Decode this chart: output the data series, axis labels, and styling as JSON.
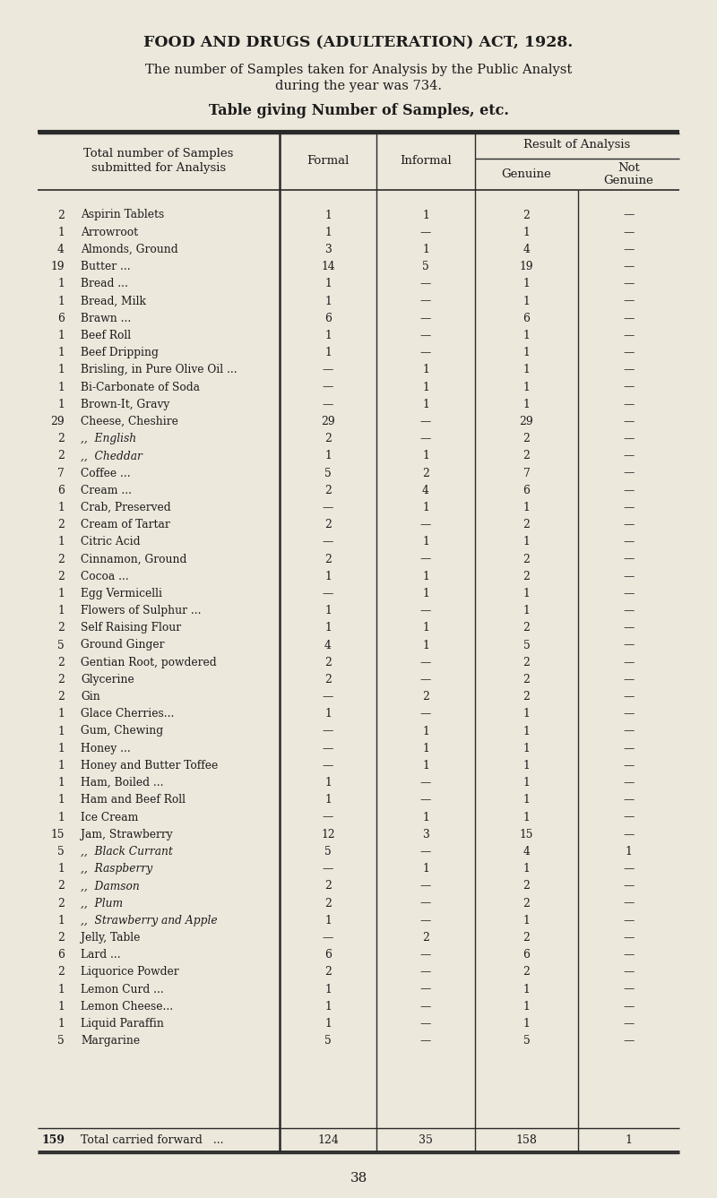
{
  "bg_color": "#ede8dc",
  "title": "FOOD AND DRUGS (ADULTERATION) ACT, 1928.",
  "subtitle": "    The number of Samples taken for Analysis by the Public Analyst\nduring the year was 734.",
  "table_title": "Table giving Number of Samples, etc.",
  "rows": [
    [
      "2",
      "Aspirin Tablets",
      "...",
      "...",
      "1",
      "1",
      "2",
      "—"
    ],
    [
      "1",
      "Arrowroot",
      "...",
      "...",
      "1",
      "—",
      "1",
      "—"
    ],
    [
      "4",
      "Almonds, Ground",
      "...",
      "...",
      "3",
      "1",
      "4",
      "—"
    ],
    [
      "19",
      "Butter ...",
      "...",
      "...",
      "14",
      "5",
      "19",
      "—"
    ],
    [
      "1",
      "Bread ...",
      "...",
      "...",
      "1",
      "—",
      "1",
      "—"
    ],
    [
      "1",
      "Bread, Milk",
      "...",
      "...",
      "1",
      "—",
      "1",
      "—"
    ],
    [
      "6",
      "Brawn ...",
      "...",
      "...",
      "6",
      "—",
      "6",
      "—"
    ],
    [
      "1",
      "Beef Roll",
      "...",
      "...",
      "1",
      "—",
      "1",
      "—"
    ],
    [
      "1",
      "Beef Dripping",
      "...",
      "...",
      "1",
      "—",
      "1",
      "—"
    ],
    [
      "1",
      "Brisling, in Pure Olive Oil ...",
      "",
      "",
      "—",
      "1",
      "1",
      "—"
    ],
    [
      "1",
      "Bi-Carbonate of Soda",
      "...",
      "",
      "—",
      "1",
      "1",
      "—"
    ],
    [
      "1",
      "Brown-It, Gravy",
      "...",
      "...",
      "—",
      "1",
      "1",
      "—"
    ],
    [
      "29",
      "Cheese, Cheshire",
      "...",
      "...",
      "29",
      "—",
      "29",
      "—"
    ],
    [
      "2",
      ",,  English",
      "...",
      "...",
      "2",
      "—",
      "2",
      "—"
    ],
    [
      "2",
      ",,  Cheddar",
      "...",
      "...",
      "1",
      "1",
      "2",
      "—"
    ],
    [
      "7",
      "Coffee ...",
      "...",
      "...",
      "5",
      "2",
      "7",
      "—"
    ],
    [
      "6",
      "Cream ...",
      "...",
      "...",
      "2",
      "4",
      "6",
      "—"
    ],
    [
      "1",
      "Crab, Preserved",
      "...",
      "...",
      "—",
      "1",
      "1",
      "—"
    ],
    [
      "2",
      "Cream of Tartar",
      "...",
      "...",
      "2",
      "—",
      "2",
      "—"
    ],
    [
      "1",
      "Citric Acid",
      "...",
      "...",
      "—",
      "1",
      "1",
      "—"
    ],
    [
      "2",
      "Cinnamon, Ground",
      "...",
      "...",
      "2",
      "—",
      "2",
      "—"
    ],
    [
      "2",
      "Cocoa ...",
      "...",
      "...",
      "1",
      "1",
      "2",
      "—"
    ],
    [
      "1",
      "Egg Vermicelli",
      "...",
      "...",
      "—",
      "1",
      "1",
      "—"
    ],
    [
      "1",
      "Flowers of Sulphur ...",
      "...",
      "...",
      "1",
      "—",
      "1",
      "—"
    ],
    [
      "2",
      "Self Raising Flour",
      "...",
      "...",
      "1",
      "1",
      "2",
      "—"
    ],
    [
      "5",
      "Ground Ginger",
      "...",
      "...",
      "4",
      "1",
      "5",
      "—"
    ],
    [
      "2",
      "Gentian Root, powdered",
      "...",
      "",
      "2",
      "—",
      "2",
      "—"
    ],
    [
      "2",
      "Glycerine",
      "...",
      "...",
      "2",
      "—",
      "2",
      "—"
    ],
    [
      "2",
      "Gin",
      "...",
      "...",
      "—",
      "2",
      "2",
      "—"
    ],
    [
      "1",
      "Glace Cherries...",
      "...",
      "...",
      "1",
      "—",
      "1",
      "—"
    ],
    [
      "1",
      "Gum, Chewing",
      "...",
      "...",
      "—",
      "1",
      "1",
      "—"
    ],
    [
      "1",
      "Honey ...",
      "...",
      "...",
      "—",
      "1",
      "1",
      "—"
    ],
    [
      "1",
      "Honey and Butter Toffee",
      "...",
      "",
      "—",
      "1",
      "1",
      "—"
    ],
    [
      "1",
      "Ham, Boiled ...",
      "...",
      "...",
      "1",
      "—",
      "1",
      "—"
    ],
    [
      "1",
      "Ham and Beef Roll",
      "...",
      "",
      "1",
      "—",
      "1",
      "—"
    ],
    [
      "1",
      "Ice Cream",
      "...",
      "...",
      "—",
      "1",
      "1",
      "—"
    ],
    [
      "15",
      "Jam, Strawberry",
      "...",
      "...",
      "12",
      "3",
      "15",
      "—"
    ],
    [
      "5",
      ",,  Black Currant",
      "...",
      "",
      "5",
      "—",
      "4",
      "1"
    ],
    [
      "1",
      ",,  Raspberry",
      "...",
      "",
      "—",
      "1",
      "1",
      "—"
    ],
    [
      "2",
      ",,  Damson",
      "...",
      "...",
      "2",
      "—",
      "2",
      "—"
    ],
    [
      "2",
      ",,  Plum",
      "...",
      "...",
      "2",
      "—",
      "2",
      "—"
    ],
    [
      "1",
      ",,  Strawberry and Apple",
      "",
      "",
      "1",
      "—",
      "1",
      "—"
    ],
    [
      "2",
      "Jelly, Table",
      "...",
      "...",
      "—",
      "2",
      "2",
      "—"
    ],
    [
      "6",
      "Lard ...",
      "...",
      "...",
      "6",
      "—",
      "6",
      "—"
    ],
    [
      "2",
      "Liquorice Powder",
      "...",
      "...",
      "2",
      "—",
      "2",
      "—"
    ],
    [
      "1",
      "Lemon Curd ...",
      "...",
      "...",
      "1",
      "—",
      "1",
      "—"
    ],
    [
      "1",
      "Lemon Cheese...",
      "...",
      "...",
      "1",
      "—",
      "1",
      "—"
    ],
    [
      "1",
      "Liquid Paraffin",
      "...",
      "...",
      "1",
      "—",
      "1",
      "—"
    ],
    [
      "5",
      "Margarine",
      "...",
      "...",
      "5",
      "—",
      "5",
      "—"
    ]
  ],
  "footer": [
    "159",
    "Total carried forward",
    "...",
    "124",
    "35",
    "158",
    "1"
  ],
  "page_number": "38",
  "text_color": "#1c1c1c",
  "line_color": "#2a2a2a"
}
